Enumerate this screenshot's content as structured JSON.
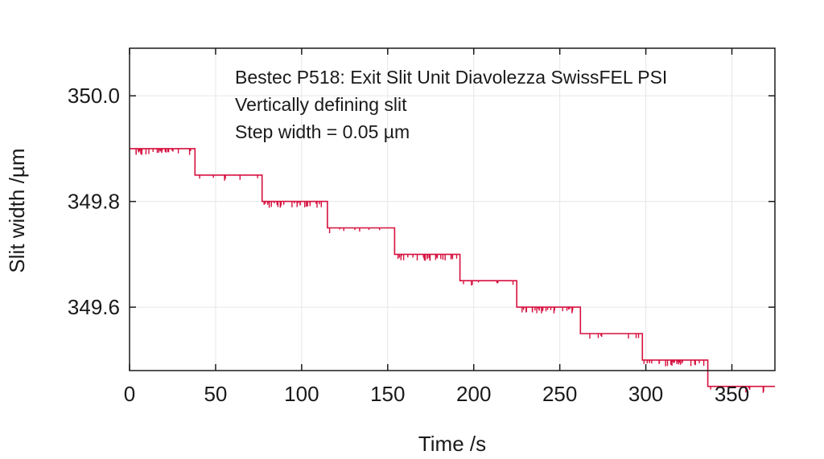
{
  "chart_data": {
    "type": "line",
    "title": "",
    "xlabel": "Time /s",
    "ylabel": "Slit width /µm",
    "xlim": [
      0,
      375
    ],
    "ylim": [
      349.48,
      350.09
    ],
    "xticks": [
      0,
      50,
      100,
      150,
      200,
      250,
      300,
      350
    ],
    "xtick_labels": [
      "0",
      "50",
      "100",
      "150",
      "200",
      "250",
      "300",
      "350"
    ],
    "yticks": [
      349.6,
      349.8,
      350.0
    ],
    "ytick_labels": [
      "349.6",
      "349.8",
      "350.0"
    ],
    "grid": true,
    "line_color": "#d6103e",
    "annotations": [
      "Bestec P518: Exit Slit Unit Diavolezza SwissFEL PSI",
      "Vertically defining slit",
      "Step width = 0.05 µm"
    ],
    "series": [
      {
        "x": [
          0,
          38,
          38,
          77,
          77,
          115,
          115,
          154,
          154,
          192,
          192,
          225,
          225,
          262,
          262,
          298,
          298,
          336,
          336,
          375
        ],
        "y": [
          349.9,
          349.9,
          349.85,
          349.85,
          349.8,
          349.8,
          349.75,
          349.75,
          349.7,
          349.7,
          349.65,
          349.65,
          349.6,
          349.6,
          349.55,
          349.55,
          349.5,
          349.5,
          349.45,
          349.45
        ]
      }
    ]
  }
}
